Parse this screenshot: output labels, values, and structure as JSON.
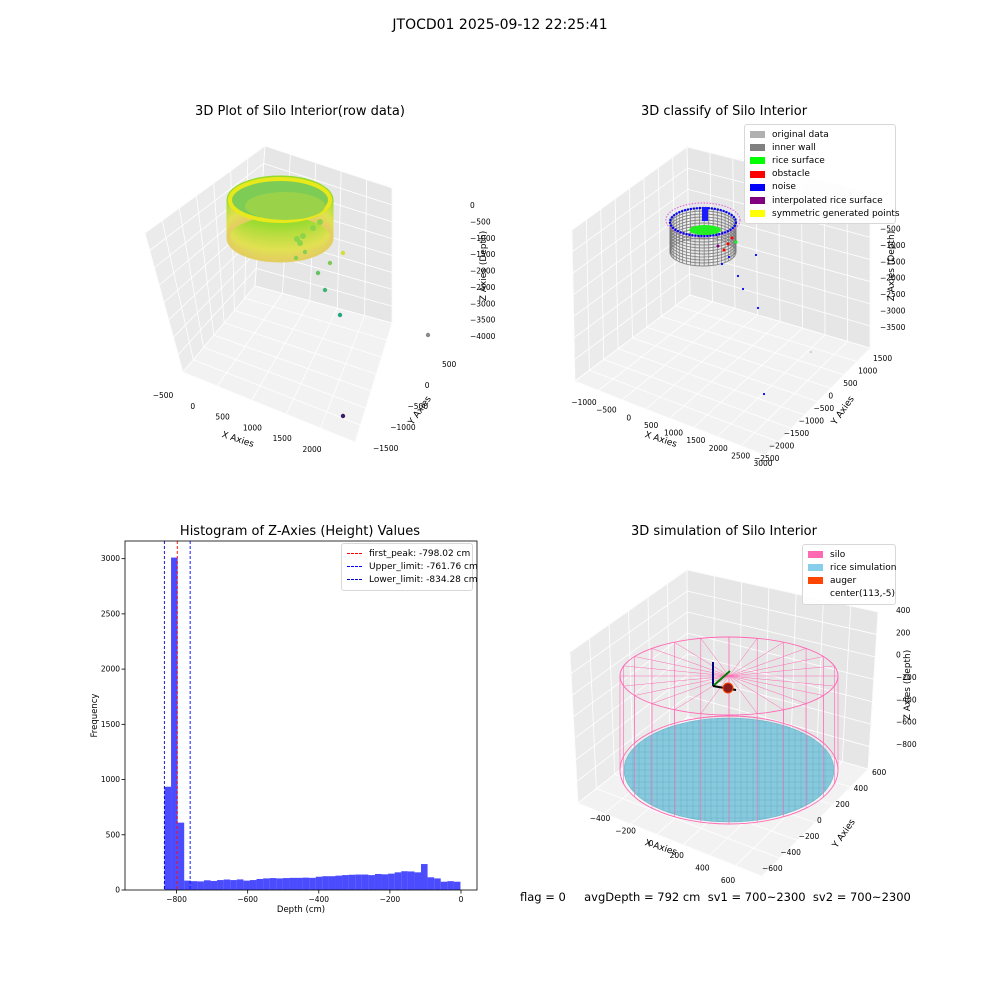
{
  "suptitle": "JTOCD01 2025-09-12 22:25:41",
  "panels": {
    "raw": {
      "title": "3D Plot of Silo Interior(row data)",
      "xlabel": "X Axies",
      "ylabel": "Y Axies",
      "zlabel": "Z Axies (Depth)",
      "xticks": [
        "−500",
        "0",
        "500",
        "1000",
        "1500",
        "2000"
      ],
      "yticks": [
        "500",
        "0",
        "−500",
        "−1000",
        "−1500"
      ],
      "zticks": [
        "0",
        "−500",
        "−1000",
        "−1500",
        "−2000",
        "−2500",
        "−3000",
        "−3500",
        "−4000"
      ]
    },
    "classify": {
      "title": "3D classify of Silo Interior",
      "xlabel": "X Axies",
      "ylabel": "Y Axies",
      "zlabel": "Z Axies (Depth)",
      "xticks": [
        "−1000",
        "−500",
        "0",
        "500",
        "1000",
        "1500",
        "2000",
        "2500",
        "3000"
      ],
      "yticks": [
        "1500",
        "1000",
        "500",
        "0",
        "−500",
        "−1000",
        "−1500",
        "−2000",
        "−2500"
      ],
      "zticks": [
        "0",
        "−500",
        "−1000",
        "−1500",
        "−2000",
        "−2500",
        "−3000",
        "−3500"
      ],
      "legend": [
        {
          "label": "original data",
          "color": "#b0b0b0"
        },
        {
          "label": "inner wall",
          "color": "#808080"
        },
        {
          "label": "rice surface",
          "color": "#00ff00"
        },
        {
          "label": "obstacle",
          "color": "#ff0000"
        },
        {
          "label": "noise",
          "color": "#0000ff"
        },
        {
          "label": "interpolated rice surface",
          "color": "#800080"
        },
        {
          "label": "symmetric generated points",
          "color": "#ffff00"
        }
      ]
    },
    "simulation": {
      "title": "3D simulation of Silo Interior",
      "xlabel": "X Axies",
      "ylabel": "Y Axies",
      "zlabel": "Z Axies (Depth)",
      "xticks": [
        "−400",
        "−200",
        "0",
        "200",
        "400",
        "600"
      ],
      "yticks": [
        "600",
        "400",
        "200",
        "0",
        "−200",
        "−400",
        "−600"
      ],
      "zticks": [
        "400",
        "200",
        "0",
        "−200",
        "−400",
        "−600",
        "−800"
      ],
      "legend": [
        {
          "label": "silo",
          "color": "#ff69b4"
        },
        {
          "label": "rice simulation",
          "color": "#87ceeb"
        },
        {
          "label": "auger",
          "color": "#ff4500"
        },
        {
          "label": "center(113,-5)",
          "color": ""
        }
      ]
    }
  },
  "footer": {
    "text": "flag = 0     avgDepth = 792 cm  sv1 = 700~2300  sv2 = 700~2300"
  },
  "chart_data": [
    {
      "type": "bar",
      "title": "Histogram of Z-Axies (Height) Values",
      "xlabel": "Depth (cm)",
      "ylabel": "Frequency",
      "xlim": [
        -945,
        45
      ],
      "ylim": [
        0,
        3160
      ],
      "xticks": [
        -800,
        -600,
        -400,
        -200,
        0
      ],
      "xtick_labels": [
        "−800",
        "−600",
        "−400",
        "−200",
        "0"
      ],
      "yticks": [
        0,
        500,
        1000,
        1500,
        2000,
        2500,
        3000
      ],
      "ytick_labels": [
        "0",
        "500",
        "1000",
        "1500",
        "2000",
        "2500",
        "3000"
      ],
      "bar_color": "#0000ff",
      "bar_alpha": 0.7,
      "bin_width": 18.5,
      "bin_left_edges": [
        -834,
        -815.5,
        -797,
        -778.5,
        -760,
        -741.5,
        -723,
        -704.5,
        -686,
        -667.5,
        -649,
        -630.5,
        -612,
        -593.5,
        -575,
        -556.5,
        -538,
        -519.5,
        -501,
        -482.5,
        -464,
        -445.5,
        -427,
        -408.5,
        -390,
        -371.5,
        -353,
        -334.5,
        -316,
        -297.5,
        -279,
        -260.5,
        -242,
        -223.5,
        -205,
        -186.5,
        -168,
        -149.5,
        -131,
        -112.5,
        -94,
        -75.5,
        -57,
        -38.5,
        -20
      ],
      "values": [
        935,
        3010,
        610,
        85,
        80,
        78,
        88,
        82,
        90,
        95,
        90,
        96,
        85,
        90,
        100,
        105,
        108,
        105,
        108,
        110,
        110,
        112,
        110,
        120,
        125,
        125,
        130,
        135,
        138,
        140,
        140,
        135,
        145,
        142,
        148,
        160,
        170,
        168,
        160,
        235,
        115,
        105,
        75,
        80,
        75
      ],
      "vlines": [
        {
          "label": "first_peak: -798.02 cm",
          "x": -798.02,
          "color": "#ff0000"
        },
        {
          "label": "Upper_limit: -761.76 cm",
          "x": -761.76,
          "color": "#0000ff"
        },
        {
          "label": "Lower_limit: -834.28 cm",
          "x": -834.28,
          "color": "#0000cc"
        }
      ]
    }
  ]
}
